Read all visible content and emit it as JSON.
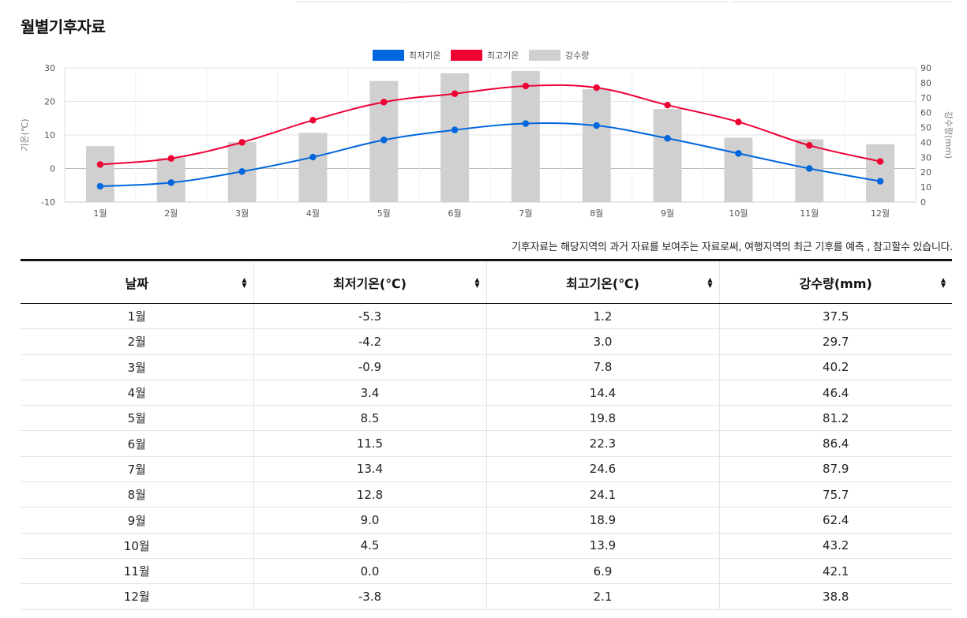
{
  "page": {
    "title": "월별기후자료",
    "note": "기후자료는 해당지역의 과거 자료를 보여주는 자료로써, 여행지역의 최근 기후를 예측 , 참고할수 있습니다."
  },
  "legend": [
    {
      "label": "최저기온",
      "color": "#0066dd"
    },
    {
      "label": "최고기온",
      "color": "#ee0033"
    },
    {
      "label": "강수량",
      "color": "#d0d0d0"
    }
  ],
  "chart_data": {
    "type": "bar+line",
    "categories": [
      "1월",
      "2월",
      "3월",
      "4월",
      "5월",
      "6월",
      "7월",
      "8월",
      "9월",
      "10월",
      "11월",
      "12월"
    ],
    "series": [
      {
        "name": "최저기온",
        "kind": "line",
        "axis": "left",
        "color": "#0066dd",
        "values": [
          -5.3,
          -4.2,
          -0.9,
          3.4,
          8.5,
          11.5,
          13.4,
          12.8,
          9.0,
          4.5,
          0.0,
          -3.8
        ]
      },
      {
        "name": "최고기온",
        "kind": "line",
        "axis": "left",
        "color": "#ee0033",
        "values": [
          1.2,
          3.0,
          7.8,
          14.4,
          19.8,
          22.3,
          24.6,
          24.1,
          18.9,
          13.9,
          6.9,
          2.1
        ]
      },
      {
        "name": "강수량",
        "kind": "bar",
        "axis": "right",
        "color": "#d0d0d0",
        "values": [
          37.5,
          29.7,
          40.2,
          46.4,
          81.2,
          86.4,
          87.9,
          75.7,
          62.4,
          43.2,
          42.1,
          38.8
        ]
      }
    ],
    "ylabel_left": "기온(℃)",
    "ylabel_right": "강수량(mm)",
    "ylim_left": [
      -10,
      30
    ],
    "yticks_left": [
      -10,
      0,
      10,
      20,
      30
    ],
    "ylim_right": [
      0,
      90
    ],
    "yticks_right": [
      0,
      10,
      20,
      30,
      40,
      50,
      60,
      70,
      80,
      90
    ],
    "grid": true,
    "legend_position": "top-center"
  },
  "table": {
    "headers": [
      "날짜",
      "최저기온(℃)",
      "최고기온(℃)",
      "강수량(mm)"
    ],
    "rows": [
      [
        "1월",
        "-5.3",
        "1.2",
        "37.5"
      ],
      [
        "2월",
        "-4.2",
        "3.0",
        "29.7"
      ],
      [
        "3월",
        "-0.9",
        "7.8",
        "40.2"
      ],
      [
        "4월",
        "3.4",
        "14.4",
        "46.4"
      ],
      [
        "5월",
        "8.5",
        "19.8",
        "81.2"
      ],
      [
        "6월",
        "11.5",
        "22.3",
        "86.4"
      ],
      [
        "7월",
        "13.4",
        "24.6",
        "87.9"
      ],
      [
        "8월",
        "12.8",
        "24.1",
        "75.7"
      ],
      [
        "9월",
        "9.0",
        "18.9",
        "62.4"
      ],
      [
        "10월",
        "4.5",
        "13.9",
        "43.2"
      ],
      [
        "11월",
        "0.0",
        "6.9",
        "42.1"
      ],
      [
        "12월",
        "-3.8",
        "2.1",
        "38.8"
      ]
    ]
  }
}
